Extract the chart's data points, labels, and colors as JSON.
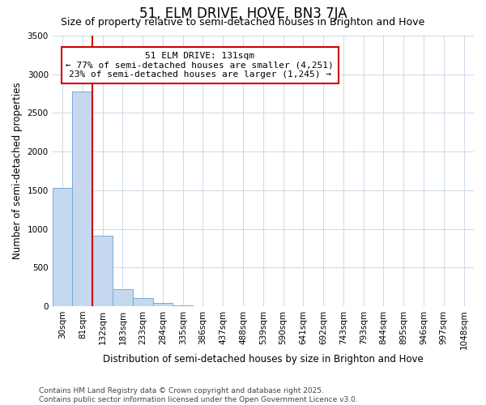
{
  "title": "51, ELM DRIVE, HOVE, BN3 7JA",
  "subtitle": "Size of property relative to semi-detached houses in Brighton and Hove",
  "xlabel": "Distribution of semi-detached houses by size in Brighton and Hove",
  "ylabel": "Number of semi-detached properties",
  "categories": [
    "30sqm",
    "81sqm",
    "132sqm",
    "183sqm",
    "233sqm",
    "284sqm",
    "335sqm",
    "386sqm",
    "437sqm",
    "488sqm",
    "539sqm",
    "590sqm",
    "641sqm",
    "692sqm",
    "743sqm",
    "793sqm",
    "844sqm",
    "895sqm",
    "946sqm",
    "997sqm",
    "1048sqm"
  ],
  "values": [
    1530,
    2780,
    910,
    215,
    100,
    40,
    5,
    0,
    0,
    0,
    0,
    0,
    0,
    0,
    0,
    0,
    0,
    0,
    0,
    0,
    0
  ],
  "bar_color": "#c5d8f0",
  "bar_edge_color": "#7aaad4",
  "vline_color": "#cc0000",
  "vline_x_index": 2,
  "annotation_title": "51 ELM DRIVE: 131sqm",
  "annotation_line1": "← 77% of semi-detached houses are smaller (4,251)",
  "annotation_line2": "23% of semi-detached houses are larger (1,245) →",
  "annotation_box_edgecolor": "#cc0000",
  "ylim": [
    0,
    3500
  ],
  "yticks": [
    0,
    500,
    1000,
    1500,
    2000,
    2500,
    3000,
    3500
  ],
  "footer_line1": "Contains HM Land Registry data © Crown copyright and database right 2025.",
  "footer_line2": "Contains public sector information licensed under the Open Government Licence v3.0.",
  "background_color": "#ffffff",
  "plot_bg_color": "#ffffff",
  "grid_color": "#d0dce8",
  "title_fontsize": 12,
  "subtitle_fontsize": 9,
  "axis_label_fontsize": 8.5,
  "tick_fontsize": 7.5,
  "annotation_fontsize": 8,
  "footer_fontsize": 6.5
}
